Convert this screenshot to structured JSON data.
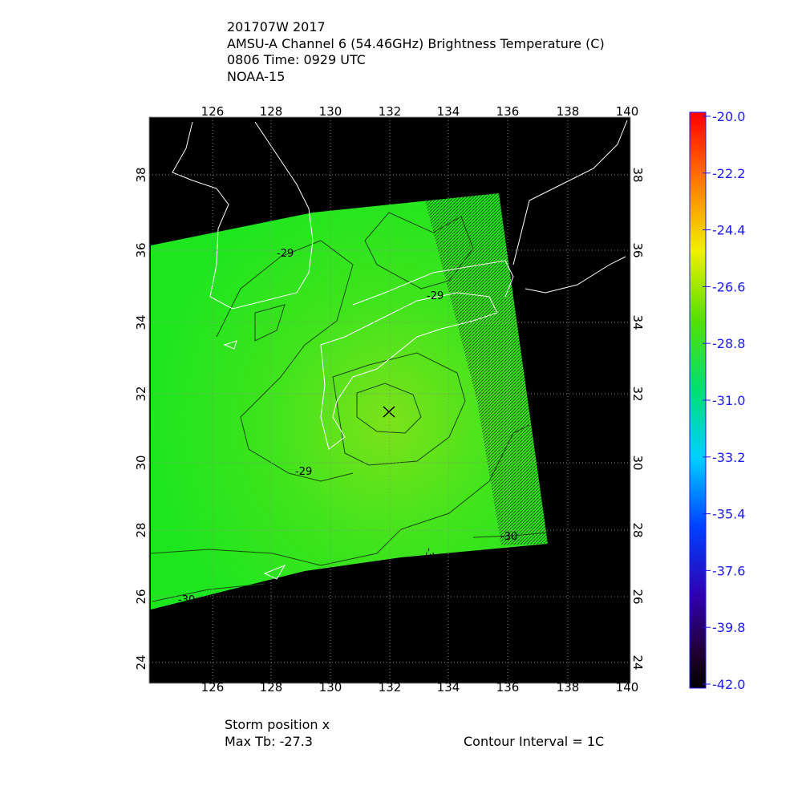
{
  "header": {
    "lines": [
      "201707W 2017",
      "AMSU-A Channel 6 (54.46GHz) Brightness Temperature (C)",
      "0806 Time: 0929 UTC",
      "NOAA-15"
    ]
  },
  "map": {
    "lon_ticks": [
      "126",
      "128",
      "130",
      "132",
      "134",
      "136",
      "138",
      "140"
    ],
    "lat_ticks": [
      "24",
      "26",
      "28",
      "30",
      "32",
      "34",
      "36",
      "38"
    ],
    "contour_labels": [
      "-29",
      "-29",
      "-29",
      "-30",
      "-30",
      "-30"
    ]
  },
  "colorbar": {
    "ticks": [
      "-20.0",
      "-22.2",
      "-24.4",
      "-26.6",
      "-28.8",
      "-31.0",
      "-33.2",
      "-35.4",
      "-37.6",
      "-39.8",
      "-42.0"
    ]
  },
  "footer": {
    "storm": "Storm position x",
    "max_tb": "Max Tb: -27.3",
    "contour_interval": "Contour Interval = 1C"
  }
}
